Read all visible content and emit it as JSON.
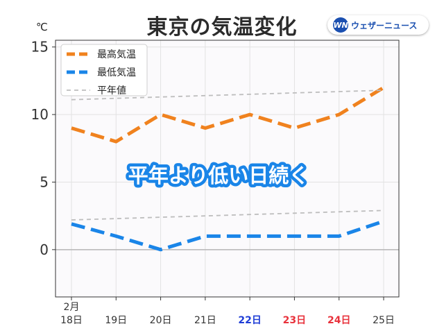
{
  "header": {
    "title": "東京の気温変化",
    "unit": "℃",
    "logo_mark": "WN",
    "logo_text": "ウェザーニュース"
  },
  "colors": {
    "high": "#f0821e",
    "low": "#1a85e8",
    "normal": "#bdbdbd",
    "weekday_text": "#333333",
    "saturday": "#1e3dd6",
    "holiday": "#e8323c",
    "plot_bg": "#fbfafc",
    "annotation_fill": "#ffffff",
    "annotation_stroke": "#1a85e8"
  },
  "chart_data": {
    "type": "line",
    "categories": [
      "18日",
      "19日",
      "20日",
      "21日",
      "22日",
      "23日",
      "24日",
      "25日"
    ],
    "month_label": "2月",
    "category_colors": [
      "weekday",
      "weekday",
      "weekday",
      "weekday",
      "saturday",
      "holiday",
      "holiday",
      "weekday"
    ],
    "ylim": [
      -3.5,
      15.5
    ],
    "yticks": [
      0,
      5,
      10,
      15
    ],
    "grid": true,
    "legend_position": "top-left",
    "annotation": "平年より低い日続く",
    "series": [
      {
        "name": "最高気温",
        "style": "dashed-thick",
        "color_key": "high",
        "values": [
          9,
          8,
          10,
          9,
          10,
          9,
          10,
          12
        ]
      },
      {
        "name": "最低気温",
        "style": "dashed-thick",
        "color_key": "low",
        "values": [
          1.9,
          1,
          0,
          1,
          1,
          1,
          1,
          2.1
        ]
      },
      {
        "name": "平年値",
        "style": "dashed-thin",
        "color_key": "normal",
        "values": [
          11.1,
          11.2,
          11.3,
          11.4,
          11.5,
          11.6,
          11.7,
          11.8
        ]
      },
      {
        "name": "",
        "style": "dashed-thin",
        "color_key": "normal",
        "values": [
          2.2,
          2.3,
          2.4,
          2.5,
          2.6,
          2.7,
          2.8,
          2.9
        ]
      }
    ]
  }
}
